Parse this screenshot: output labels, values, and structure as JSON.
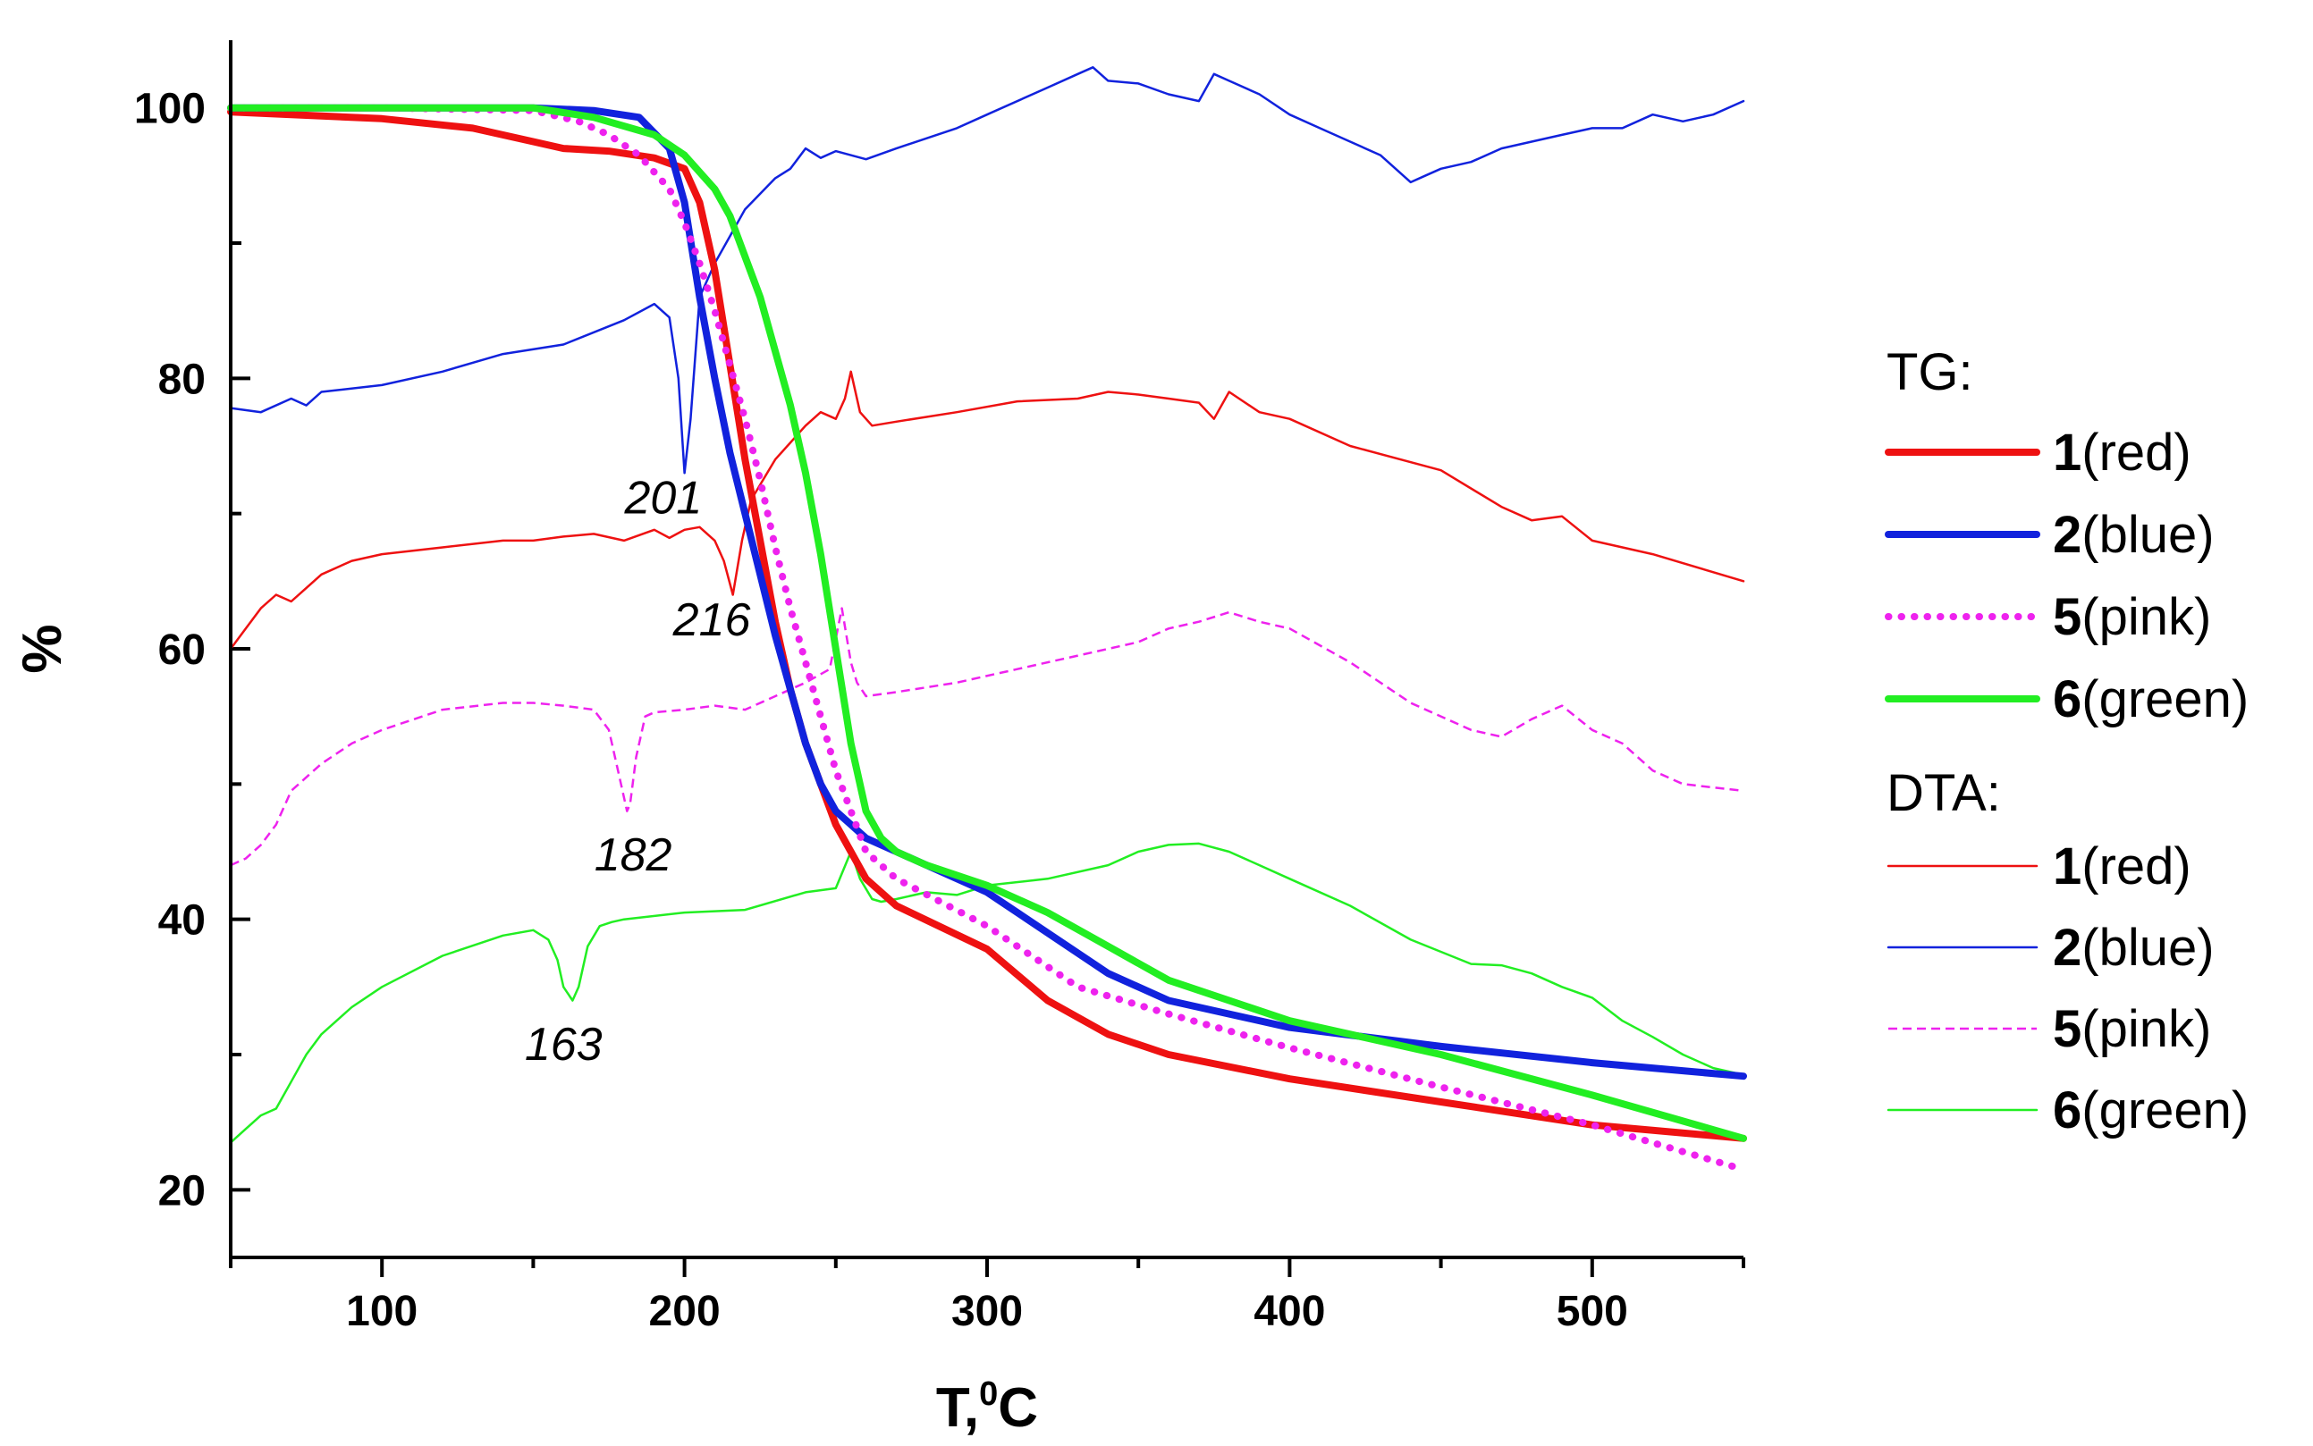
{
  "chart_data": {
    "type": "line",
    "title": "",
    "xlabel": "T,",
    "xlabel_sup": "0",
    "xlabel_unit": "C",
    "ylabel": "%",
    "xlim": [
      50,
      550
    ],
    "ylim": [
      15,
      105
    ],
    "xticks": [
      100,
      200,
      300,
      400,
      500
    ],
    "yticks": [
      20,
      40,
      60,
      80,
      100
    ],
    "annotations": [
      {
        "text": "201",
        "x": 193,
        "y": 70
      },
      {
        "text": "216",
        "x": 209,
        "y": 61
      },
      {
        "text": "182",
        "x": 183,
        "y": 43.6
      },
      {
        "text": "163",
        "x": 160,
        "y": 29.6
      }
    ],
    "legend": {
      "placement": "right",
      "tg_heading": "TG:",
      "dta_heading": "DTA:",
      "entries": [
        {
          "group": "TG",
          "num": "1",
          "label": "(red)",
          "color": "#ee1111",
          "style": "thick"
        },
        {
          "group": "TG",
          "num": "2",
          "label": "(blue)",
          "color": "#1122dd",
          "style": "thick"
        },
        {
          "group": "TG",
          "num": "5",
          "label": "(pink)",
          "color": "#ee22ee",
          "style": "dotted"
        },
        {
          "group": "TG",
          "num": "6",
          "label": "(green)",
          "color": "#22ee22",
          "style": "thick"
        },
        {
          "group": "DTA",
          "num": "1",
          "label": "(red)",
          "color": "#ee1111",
          "style": "thin"
        },
        {
          "group": "DTA",
          "num": "2",
          "label": "(blue)",
          "color": "#1122dd",
          "style": "thin"
        },
        {
          "group": "DTA",
          "num": "5",
          "label": "(pink)",
          "color": "#ee22ee",
          "style": "dashed"
        },
        {
          "group": "DTA",
          "num": "6",
          "label": "(green)",
          "color": "#22ee22",
          "style": "thin"
        }
      ]
    },
    "series": [
      {
        "name": "TG 1 (red)",
        "group": "TG",
        "color": "#ee1111",
        "style": "thick",
        "x": [
          50,
          100,
          130,
          150,
          160,
          175,
          190,
          200,
          205,
          210,
          215,
          220,
          225,
          230,
          235,
          240,
          245,
          250,
          255,
          260,
          270,
          300,
          320,
          340,
          360,
          400,
          450,
          500,
          550
        ],
        "y": [
          99.7,
          99.2,
          98.5,
          97.5,
          97,
          96.8,
          96.3,
          95.5,
          93,
          88,
          81,
          74,
          68,
          62,
          57,
          53,
          50,
          47,
          45,
          43,
          41,
          37.8,
          34,
          31.5,
          30,
          28.2,
          26.5,
          24.8,
          23.8
        ]
      },
      {
        "name": "TG 2 (blue)",
        "group": "TG",
        "color": "#1122dd",
        "style": "thick",
        "x": [
          50,
          100,
          150,
          170,
          185,
          195,
          200,
          205,
          210,
          215,
          220,
          225,
          230,
          235,
          240,
          245,
          250,
          255,
          260,
          270,
          300,
          320,
          340,
          360,
          400,
          450,
          500,
          550
        ],
        "y": [
          100,
          100,
          100,
          99.8,
          99.3,
          97,
          93,
          86,
          80,
          74.5,
          70,
          65.5,
          61,
          57,
          53,
          50,
          48,
          47,
          46,
          45,
          42,
          39,
          36,
          34,
          32,
          30.6,
          29.4,
          28.4
        ]
      },
      {
        "name": "TG 5 (pink)",
        "group": "TG",
        "color": "#ee22ee",
        "style": "dotted",
        "x": [
          50,
          100,
          150,
          165,
          175,
          185,
          195,
          200,
          205,
          210,
          215,
          220,
          225,
          230,
          235,
          240,
          245,
          250,
          255,
          260,
          270,
          300,
          330,
          360,
          400,
          450,
          500,
          550
        ],
        "y": [
          100,
          100,
          99.8,
          99,
          98,
          96.5,
          94,
          91.5,
          88.5,
          85,
          81,
          77,
          72.5,
          67.5,
          63,
          59,
          55,
          51,
          48,
          45,
          43,
          39.5,
          35,
          33,
          30.5,
          27.6,
          24.8,
          21.5
        ]
      },
      {
        "name": "TG 6 (green)",
        "group": "TG",
        "color": "#22ee22",
        "style": "thick",
        "x": [
          50,
          100,
          150,
          170,
          190,
          200,
          210,
          215,
          220,
          225,
          230,
          235,
          240,
          245,
          250,
          255,
          260,
          265,
          270,
          280,
          300,
          320,
          340,
          360,
          400,
          450,
          500,
          550
        ],
        "y": [
          100,
          100,
          100,
          99.3,
          98,
          96.5,
          94,
          92,
          89,
          86,
          82,
          78,
          73,
          67,
          60,
          53,
          48,
          46,
          45,
          44,
          42.5,
          40.5,
          38,
          35.5,
          32.5,
          30,
          27,
          23.8
        ]
      },
      {
        "name": "DTA 1 (red)",
        "group": "DTA",
        "color": "#ee1111",
        "style": "thin",
        "x": [
          50,
          55,
          60,
          65,
          70,
          75,
          80,
          90,
          100,
          120,
          140,
          150,
          160,
          170,
          180,
          190,
          195,
          200,
          205,
          210,
          213,
          216,
          219,
          222,
          230,
          240,
          245,
          250,
          253,
          255,
          258,
          262,
          270,
          290,
          310,
          330,
          340,
          350,
          360,
          370,
          375,
          380,
          390,
          400,
          420,
          450,
          470,
          480,
          490,
          500,
          520,
          550
        ],
        "y": [
          60,
          61.5,
          63,
          64,
          63.5,
          64.5,
          65.5,
          66.5,
          67,
          67.5,
          68,
          68,
          68.3,
          68.5,
          68,
          68.8,
          68.2,
          68.8,
          69,
          68,
          66.5,
          64,
          68,
          71,
          74,
          76.5,
          77.5,
          77,
          78.5,
          80.5,
          77.5,
          76.5,
          76.8,
          77.5,
          78.3,
          78.5,
          79,
          78.8,
          78.5,
          78.2,
          77,
          79,
          77.5,
          77,
          75,
          73.2,
          70.5,
          69.5,
          69.8,
          68,
          67,
          65
        ]
      },
      {
        "name": "DTA 2 (blue)",
        "group": "DTA",
        "color": "#1122dd",
        "style": "thin",
        "x": [
          50,
          60,
          70,
          75,
          80,
          100,
          120,
          140,
          160,
          180,
          190,
          195,
          198,
          200,
          202,
          205,
          210,
          215,
          220,
          230,
          235,
          240,
          245,
          250,
          260,
          270,
          290,
          300,
          320,
          330,
          335,
          340,
          350,
          360,
          370,
          375,
          380,
          390,
          400,
          410,
          420,
          430,
          440,
          445,
          450,
          460,
          470,
          480,
          490,
          500,
          510,
          520,
          530,
          540,
          550
        ],
        "y": [
          77.8,
          77.5,
          78.5,
          78,
          79,
          79.5,
          80.5,
          81.8,
          82.5,
          84.3,
          85.5,
          84.5,
          80,
          73,
          77,
          86,
          88.5,
          90.5,
          92.5,
          94.8,
          95.5,
          97,
          96.3,
          96.8,
          96.2,
          97,
          98.5,
          99.5,
          101.5,
          102.5,
          103,
          102,
          101.8,
          101,
          100.5,
          102.5,
          102,
          101,
          99.5,
          98.5,
          97.5,
          96.5,
          94.5,
          95,
          95.5,
          96,
          97,
          97.5,
          98,
          98.5,
          98.5,
          99.5,
          99,
          99.5,
          100.5
        ]
      },
      {
        "name": "DTA 5 (pink)",
        "group": "DTA",
        "color": "#ee22ee",
        "style": "dashed",
        "x": [
          50,
          55,
          60,
          65,
          70,
          80,
          90,
          100,
          120,
          140,
          150,
          160,
          170,
          175,
          178,
          181,
          182,
          184,
          187,
          190,
          200,
          210,
          220,
          230,
          240,
          248,
          252,
          255,
          257,
          260,
          270,
          290,
          310,
          330,
          350,
          360,
          370,
          380,
          390,
          400,
          420,
          440,
          460,
          470,
          480,
          490,
          500,
          510,
          520,
          530,
          550
        ],
        "y": [
          44,
          44.5,
          45.5,
          47,
          49.5,
          51.5,
          53,
          54,
          55.5,
          56,
          56,
          55.8,
          55.5,
          54,
          51,
          48,
          48.5,
          52,
          55,
          55.3,
          55.5,
          55.8,
          55.5,
          56.5,
          57.5,
          58.5,
          63,
          59,
          57.5,
          56.5,
          56.8,
          57.5,
          58.5,
          59.5,
          60.5,
          61.5,
          62,
          62.7,
          62,
          61.5,
          59,
          56,
          54,
          53.5,
          54.8,
          55.8,
          54,
          53,
          51,
          50,
          49.5
        ]
      },
      {
        "name": "DTA 6 (green)",
        "group": "DTA",
        "color": "#22ee22",
        "style": "thin",
        "x": [
          50,
          55,
          60,
          65,
          70,
          75,
          80,
          90,
          100,
          120,
          140,
          150,
          155,
          158,
          160,
          163,
          165,
          168,
          172,
          176,
          180,
          200,
          220,
          240,
          250,
          255,
          258,
          262,
          265,
          270,
          280,
          290,
          300,
          320,
          340,
          350,
          360,
          370,
          380,
          390,
          400,
          420,
          440,
          460,
          470,
          480,
          490,
          500,
          510,
          520,
          530,
          540,
          550
        ],
        "y": [
          23.5,
          24.5,
          25.5,
          26,
          28,
          30,
          31.5,
          33.5,
          35,
          37.3,
          38.8,
          39.2,
          38.5,
          37,
          35,
          34,
          35,
          38,
          39.5,
          39.8,
          40,
          40.5,
          40.7,
          42,
          42.3,
          45,
          43,
          41.5,
          41.3,
          41.5,
          42,
          41.8,
          42.5,
          43,
          44,
          45,
          45.5,
          45.6,
          45,
          44,
          43,
          41,
          38.5,
          36.7,
          36.6,
          36,
          35,
          34.2,
          32.5,
          31.3,
          30,
          29,
          28.5
        ]
      }
    ]
  }
}
